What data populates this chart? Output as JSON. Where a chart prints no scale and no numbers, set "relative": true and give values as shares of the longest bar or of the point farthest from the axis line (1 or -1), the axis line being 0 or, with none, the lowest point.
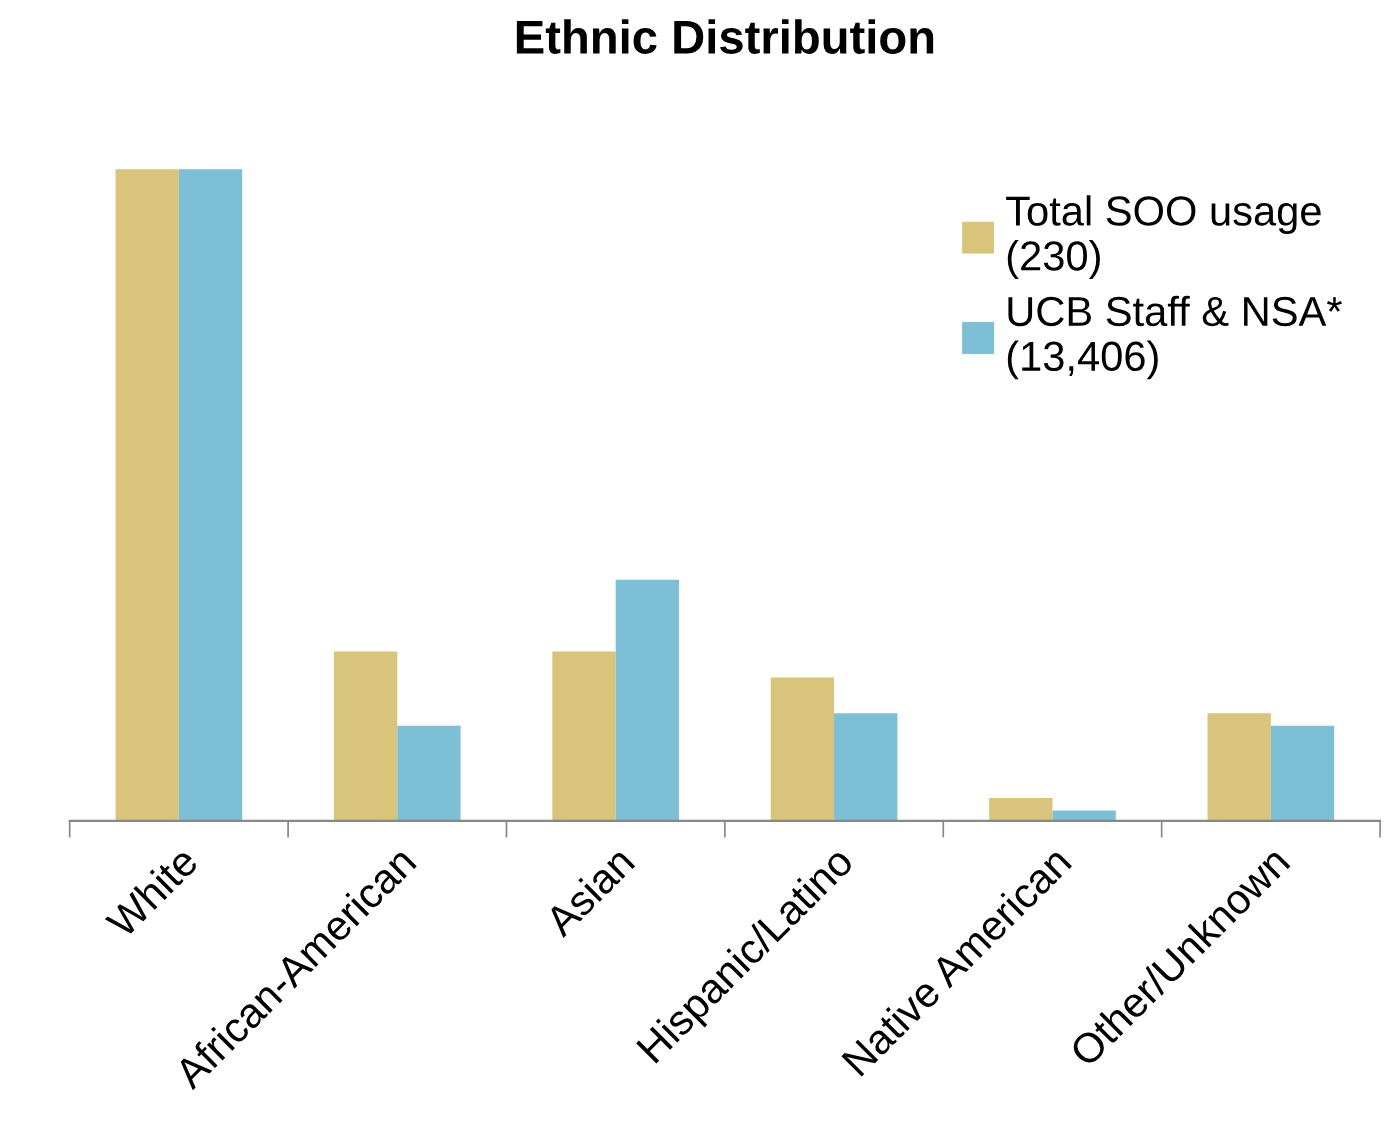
{
  "chart_data": {
    "type": "bar",
    "title": "Ethnic Distribution",
    "relative": true,
    "legend": "right",
    "grid": false,
    "categories": [
      "White",
      "African-American",
      "Asian",
      "Hispanic/Latino",
      "Native American",
      "Other/Unknown"
    ],
    "series": [
      {
        "name": "Total SOO usage\n(230)",
        "color": "#d8c47a",
        "values": [
          1,
          0.26,
          0.26,
          0.22,
          0.035,
          0.165
        ]
      },
      {
        "name": "UCB Staff & NSA*\n(13,406)",
        "color": "#7dc0d5",
        "values": [
          1,
          0.146,
          0.37,
          0.165,
          0.016,
          0.146
        ]
      }
    ]
  }
}
